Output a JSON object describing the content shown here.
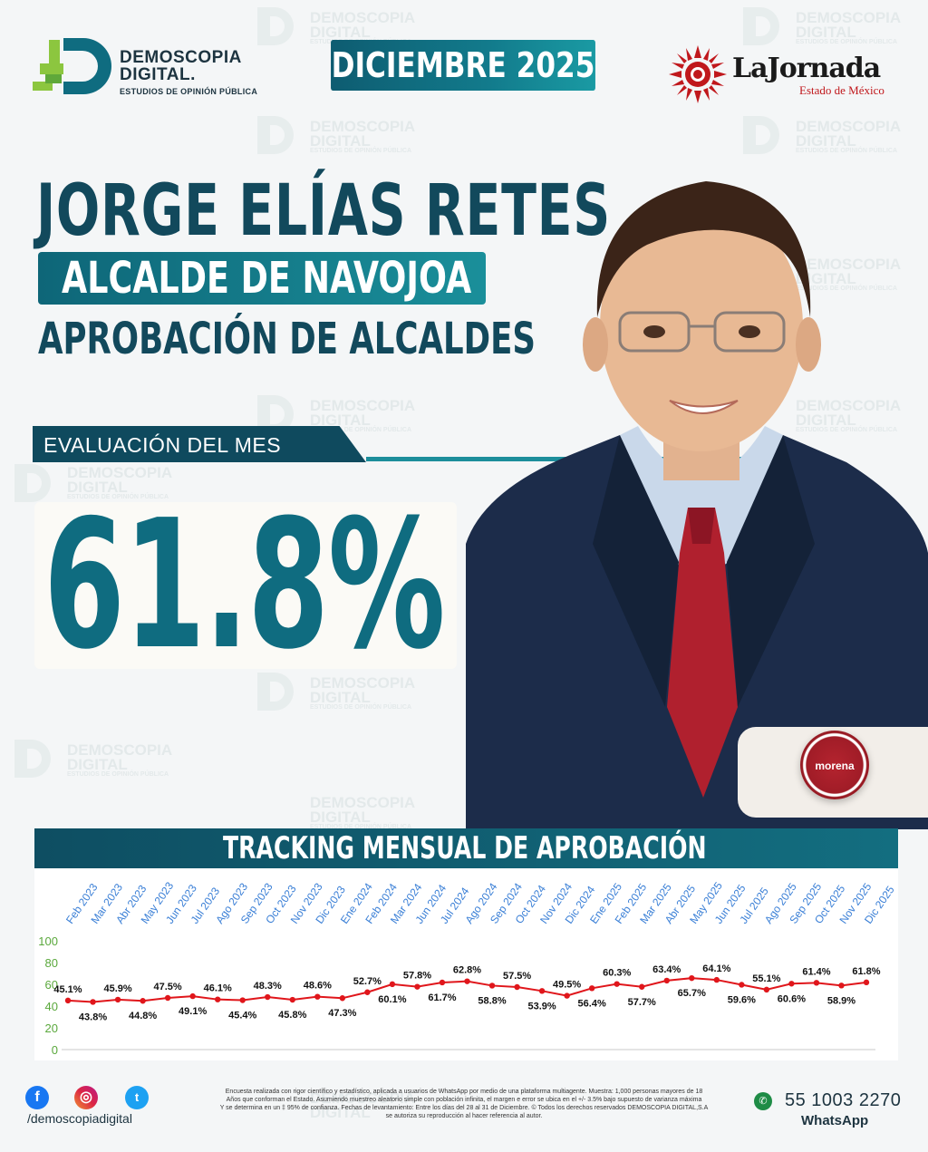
{
  "header": {
    "brand_line1": "DEMOSCOPIA",
    "brand_line2": "DIGITAL.",
    "brand_tagline": "ESTUDIOS DE OPINIÓN PÚBLICA",
    "date": "DICIEMBRE 2025",
    "partner_name": "LaJornada",
    "partner_sub": "Estado de México"
  },
  "watermark": {
    "line1": "DEMOSCOPIA",
    "line2": "DIGITAL",
    "line3": "ESTUDIOS DE OPINIÓN PÚBLICA"
  },
  "subject": {
    "name": "JORGE ELÍAS RETES",
    "role": "ALCALDE DE NAVOJOA",
    "study": "APROBACIÓN DE ALCALDES",
    "party": "morena"
  },
  "evaluation": {
    "label": "EVALUACIÓN DEL MES",
    "score": "61.8%"
  },
  "colors": {
    "primary": "#12495c",
    "accent": "#1a8f9a",
    "line": "#e0161b",
    "month_labels": "#3a7fd6"
  },
  "chart_data": {
    "type": "line",
    "title": "TRACKING MENSUAL DE APROBACIÓN",
    "categories": [
      "Feb 2023",
      "Mar 2023",
      "Abr 2023",
      "May 2023",
      "Jun 2023",
      "Jul 2023",
      "Ago 2023",
      "Sep 2023",
      "Oct 2023",
      "Nov 2023",
      "Dic 2023",
      "Ene 2024",
      "Feb 2024",
      "Mar 2024",
      "Jun 2024",
      "Jul 2024",
      "Ago 2024",
      "Sep 2024",
      "Oct 2024",
      "Nov 2024",
      "Dic 2024",
      "Ene 2025",
      "Feb 2025",
      "Mar 2025",
      "Abr 2025",
      "May 2025",
      "Jun 2025",
      "Jul 2025",
      "Ago 2025",
      "Sep 2025",
      "Oct 2025",
      "Nov 2025",
      "Dic 2025"
    ],
    "series": [
      {
        "values": [
          45.1,
          43.8,
          45.9,
          44.8,
          47.5,
          49.1,
          46.1,
          45.4,
          48.3,
          45.8,
          48.6,
          47.3,
          52.7,
          60.1,
          57.8,
          61.7,
          62.8,
          58.8,
          57.5,
          53.9,
          49.5,
          56.4,
          60.3,
          57.7,
          63.4,
          65.7,
          64.1,
          59.6,
          55.1,
          60.6,
          61.4,
          58.9,
          61.8
        ],
        "labels": [
          "45.1%",
          "43.8%",
          "45.9%",
          "44.8%",
          "47.5%",
          "49.1%",
          "46.1%",
          "45.4%",
          "48.3%",
          "45.8%",
          "48.6%",
          "47.3%",
          "52.7%",
          "60.1%",
          "57.8%",
          "61.7%",
          "62.8%",
          "58.8%",
          "57.5%",
          "53.9%",
          "49.5%",
          "56.4%",
          "60.3%",
          "57.7%",
          "63.4%",
          "65.7%",
          "64.1%",
          "59.6%",
          "55.1%",
          "60.6%",
          "61.4%",
          "58.9%",
          "61.8%"
        ]
      }
    ],
    "y_ticks": [
      "0",
      "20",
      "40",
      "60",
      "80",
      "100"
    ],
    "ylim": [
      0,
      100
    ],
    "grid": false
  },
  "footer": {
    "handle": "/demoscopiadigital",
    "disclaimer_1": "Encuesta realizada con rigor científico y estadístico, aplicada a usuarios de WhatsApp por medio de una plataforma multiagente. Muestra: 1,000 personas mayores de 18",
    "disclaimer_2": "Años que conforman el Estado. Asumiendo muestreo aleatorio simple con población infinita, el margen e error se ubica en el +/- 3.5% bajo supuesto de varianza máxima",
    "disclaimer_3": "Y se determina en un ‡ 95% de confianza. Fechas de levantamiento: Entre los días del 28 al 31 de Diciembre. © Todos los derechos reservados DEMOSCOPIA DIGITAL,S.A",
    "disclaimer_4": "se autoriza su reproducción al hacer referencia al autor.",
    "phone": "55 1003 2270",
    "whatsapp": "WhatsApp",
    "icons": [
      "facebook-icon",
      "instagram-icon",
      "twitter-icon",
      "whatsapp-icon"
    ]
  }
}
